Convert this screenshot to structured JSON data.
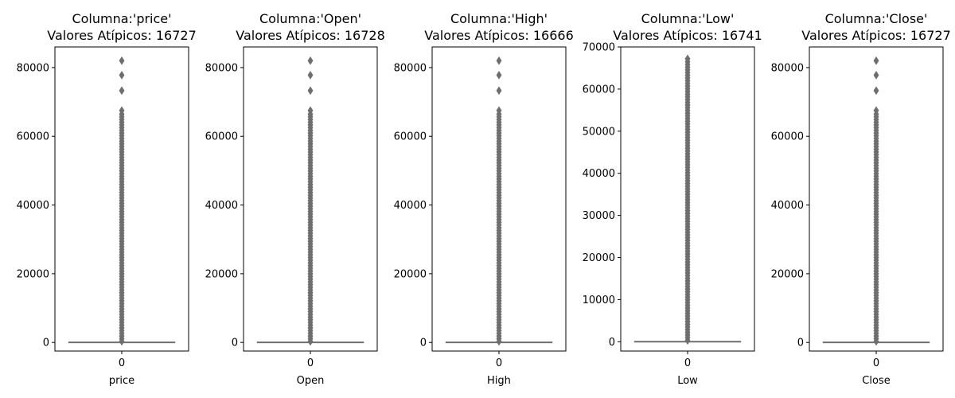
{
  "chart_data": [
    {
      "type": "box",
      "title": "Columna:'price'\nValores Atípicos: 16727",
      "xlabel": "price",
      "categories": [
        "0"
      ],
      "ylim": [
        -2500,
        86000
      ],
      "yticks": [
        0,
        20000,
        40000,
        60000,
        80000
      ],
      "box": {
        "q1": 5,
        "median": 20,
        "q3": 80,
        "whisker_low": 0,
        "whisker_high": 200
      },
      "outliers_top": [
        82000,
        77800,
        73300,
        67500
      ],
      "outlier_band": [
        300,
        67000
      ],
      "color": "#6e6e6e"
    },
    {
      "type": "box",
      "title": "Columna:'Open'\nValores Atípicos: 16728",
      "xlabel": "Open",
      "categories": [
        "0"
      ],
      "ylim": [
        -2500,
        86000
      ],
      "yticks": [
        0,
        20000,
        40000,
        60000,
        80000
      ],
      "box": {
        "q1": 5,
        "median": 20,
        "q3": 80,
        "whisker_low": 0,
        "whisker_high": 200
      },
      "outliers_top": [
        82000,
        77800,
        73300,
        67500
      ],
      "outlier_band": [
        300,
        67000
      ],
      "color": "#6e6e6e"
    },
    {
      "type": "box",
      "title": "Columna:'High'\nValores Atípicos: 16666",
      "xlabel": "High",
      "categories": [
        "0"
      ],
      "ylim": [
        -2500,
        86000
      ],
      "yticks": [
        0,
        20000,
        40000,
        60000,
        80000
      ],
      "box": {
        "q1": 5,
        "median": 20,
        "q3": 80,
        "whisker_low": 0,
        "whisker_high": 200
      },
      "outliers_top": [
        82000,
        77800,
        73300,
        67500
      ],
      "outlier_band": [
        300,
        67000
      ],
      "color": "#6e6e6e"
    },
    {
      "type": "box",
      "title": "Columna:'Low'\nValores Atípicos: 16741",
      "xlabel": "Low",
      "categories": [
        "0"
      ],
      "ylim": [
        -2200,
        70000
      ],
      "yticks": [
        0,
        10000,
        20000,
        30000,
        40000,
        50000,
        60000,
        70000
      ],
      "box": {
        "q1": 5,
        "median": 20,
        "q3": 80,
        "whisker_low": 0,
        "whisker_high": 200
      },
      "outliers_top": [
        67200
      ],
      "outlier_band": [
        300,
        67000
      ],
      "color": "#6e6e6e"
    },
    {
      "type": "box",
      "title": "Columna:'Close'\nValores Atípicos: 16727",
      "xlabel": "Close",
      "categories": [
        "0"
      ],
      "ylim": [
        -2500,
        86000
      ],
      "yticks": [
        0,
        20000,
        40000,
        60000,
        80000
      ],
      "box": {
        "q1": 5,
        "median": 20,
        "q3": 80,
        "whisker_low": 0,
        "whisker_high": 200
      },
      "outliers_top": [
        82000,
        77800,
        73300,
        67500
      ],
      "outlier_band": [
        300,
        67000
      ],
      "color": "#6e6e6e"
    }
  ]
}
